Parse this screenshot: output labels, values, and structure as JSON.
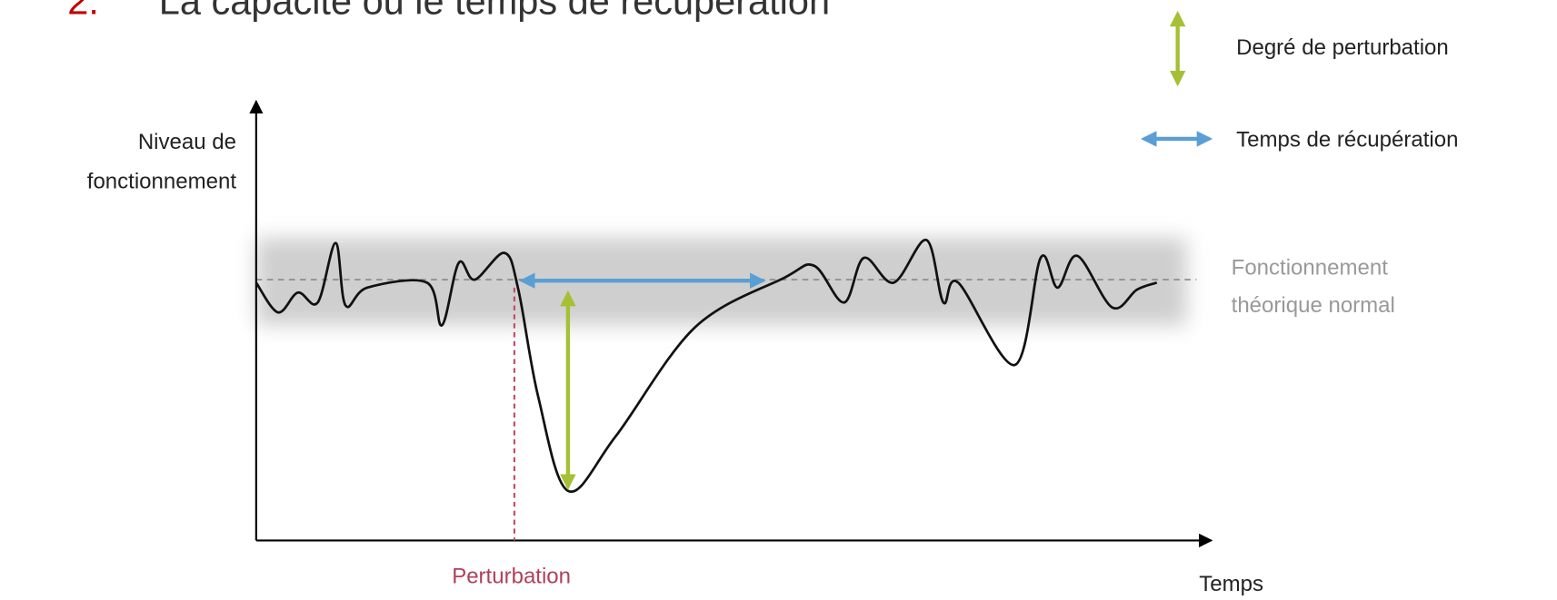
{
  "heading": {
    "number": "2.",
    "text": "La capacité ou le temps de récupération"
  },
  "legend": [
    {
      "label": "Degré de perturbation"
    },
    {
      "label": "Temps de récupération"
    }
  ],
  "y_axis_label": [
    "Niveau de",
    "fonctionnement"
  ],
  "reference_label": [
    "Fonctionnement",
    "théorique normal"
  ],
  "event_label": "Perturbation",
  "x_axis_label": "Temps"
}
